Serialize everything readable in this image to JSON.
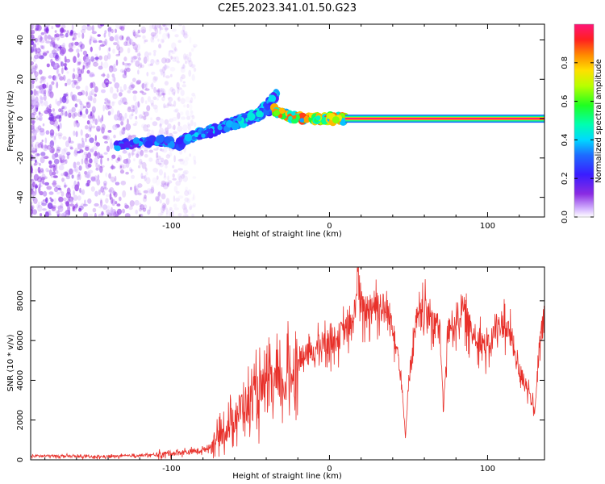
{
  "title": "C2E5.2023.341.01.50.G23",
  "colors": {
    "snr_line": "#e8302a",
    "frame": "#000000"
  },
  "chart_data": [
    {
      "type": "heatmap",
      "xlabel": "Height of straight line (km)",
      "ylabel": "Frequency (Hz)",
      "xlim": [
        -189,
        136
      ],
      "ylim": [
        -50,
        48
      ],
      "x_ticks": [
        -100,
        0,
        100
      ],
      "x_tick_labels": [
        "-100",
        "0",
        "100"
      ],
      "y_ticks": [
        -40,
        -20,
        0,
        20,
        40
      ],
      "y_tick_labels": [
        "-40",
        "-20",
        "0",
        "20",
        "40"
      ],
      "colorbar": {
        "label": "Normalized spectral amplitude",
        "range": [
          0,
          1
        ],
        "ticks": [
          0.0,
          0.2,
          0.4,
          0.6,
          0.8
        ],
        "tick_labels": [
          "0.0",
          "0.2",
          "0.4",
          "0.6",
          "0.8"
        ]
      },
      "features": [
        {
          "name": "noise-scatter",
          "x_range": [
            -189,
            -85
          ],
          "freq_range": [
            -50,
            48
          ],
          "amplitude": 0.1
        },
        {
          "name": "low-branch",
          "points": [
            [
              -135,
              -14
            ],
            [
              -110,
              -11
            ],
            [
              -95,
              -13
            ],
            [
              -90,
              -10
            ]
          ],
          "amplitude": 0.25
        },
        {
          "name": "rising-branch-1",
          "points": [
            [
              -90,
              -10
            ],
            [
              -75,
              -6
            ],
            [
              -60,
              -2
            ],
            [
              -45,
              2
            ],
            [
              -38,
              8
            ],
            [
              -33,
              13
            ]
          ],
          "amplitude": 0.3
        },
        {
          "name": "rising-branch-2",
          "points": [
            [
              -80,
              -8
            ],
            [
              -65,
              -4
            ],
            [
              -50,
              0
            ],
            [
              -40,
              4
            ],
            [
              -35,
              6
            ]
          ],
          "amplitude": 0.3
        },
        {
          "name": "convergence",
          "points": [
            [
              -35,
              4
            ],
            [
              -25,
              1
            ],
            [
              -10,
              0
            ],
            [
              0,
              0
            ],
            [
              10,
              0
            ]
          ],
          "amplitude": 0.6
        },
        {
          "name": "stable-tone",
          "points": [
            [
              10,
              0
            ],
            [
              136,
              0
            ]
          ],
          "amplitude": 1.0
        }
      ]
    },
    {
      "type": "line",
      "xlabel": "Height of straight line (km)",
      "ylabel": "SNR (10 * v/v)",
      "xlim": [
        -189,
        136
      ],
      "ylim": [
        0,
        9700
      ],
      "x_ticks": [
        -100,
        0,
        100
      ],
      "x_tick_labels": [
        "-100",
        "0",
        "100"
      ],
      "y_ticks": [
        0,
        2000,
        4000,
        6000,
        8000
      ],
      "y_tick_labels": [
        "0",
        "2000",
        "4000",
        "6000",
        "8000"
      ],
      "series": [
        {
          "name": "SNR",
          "x": [
            -189,
            -170,
            -150,
            -130,
            -110,
            -100,
            -90,
            -80,
            -75,
            -70,
            -65,
            -60,
            -55,
            -50,
            -45,
            -40,
            -35,
            -30,
            -25,
            -20,
            -15,
            -10,
            -5,
            0,
            5,
            10,
            15,
            18,
            20,
            25,
            30,
            35,
            40,
            45,
            48,
            50,
            55,
            60,
            65,
            70,
            72,
            75,
            80,
            85,
            90,
            95,
            100,
            105,
            110,
            115,
            120,
            125,
            130,
            133,
            136
          ],
          "y": [
            200,
            200,
            150,
            200,
            250,
            350,
            400,
            500,
            700,
            1200,
            1700,
            2200,
            2800,
            3000,
            3500,
            3600,
            4000,
            3800,
            4500,
            5000,
            5300,
            5500,
            5900,
            6000,
            6200,
            6600,
            6800,
            9500,
            7500,
            7800,
            8000,
            7600,
            7000,
            4500,
            1200,
            4000,
            7000,
            7500,
            7300,
            6500,
            2500,
            6500,
            7200,
            7600,
            6400,
            6200,
            5600,
            6600,
            7000,
            6200,
            4500,
            3800,
            2400,
            6000,
            7200
          ]
        }
      ]
    }
  ]
}
